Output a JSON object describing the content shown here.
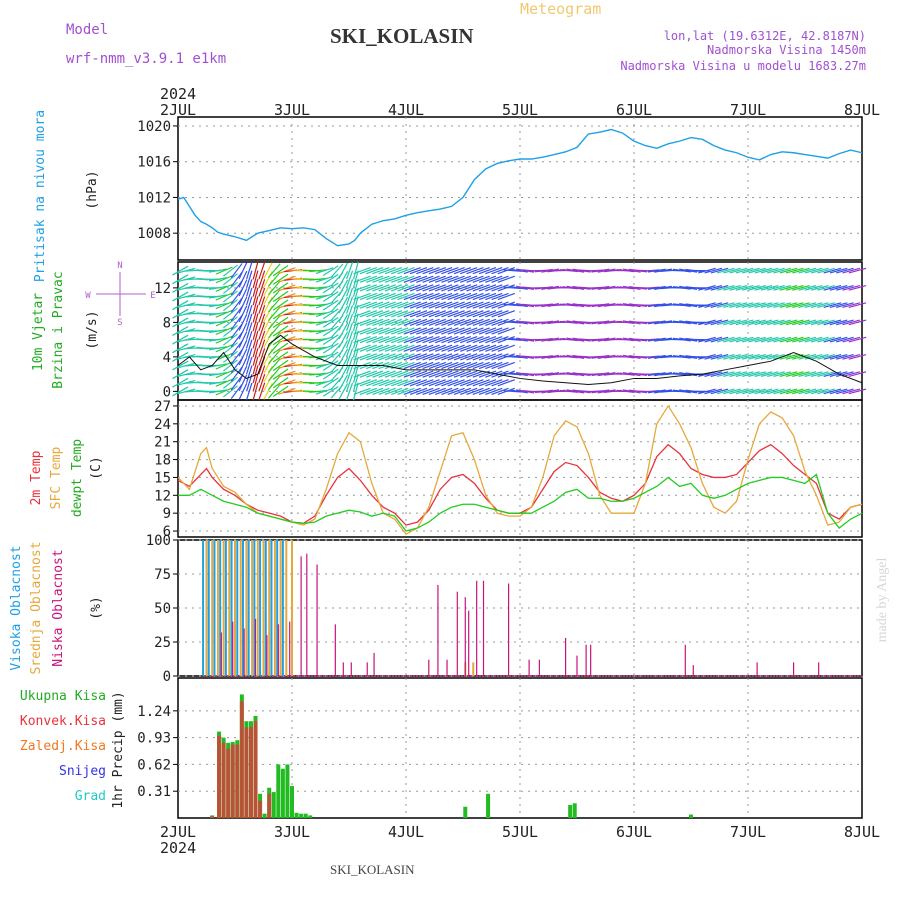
{
  "header": {
    "model_label": "Model",
    "model_name": "wrf-nmm_v3.9.1  e1km",
    "product": "Meteogram",
    "station": "SKI_KOLASIN",
    "lonlat": "lon,lat (19.6312E, 42.8187N)",
    "elevation": "Nadmorska Visina 1450m",
    "model_elevation": "Nadmorska Visina u modelu 1683.27m"
  },
  "footer": {
    "station": "SKI_KOLASIN",
    "watermark": "made by Angel"
  },
  "time_axis": {
    "year": "2024",
    "ticks": [
      "2JUL",
      "3JUL",
      "4JUL",
      "5JUL",
      "6JUL",
      "7JUL",
      "8JUL"
    ]
  },
  "panels": {
    "pressure": {
      "label": "Pritisak na nivou mora",
      "unit": "(hPa)"
    },
    "wind": {
      "label1": "10m Vjetar",
      "label2": "Brzina i Pravac",
      "unit": "(m/s)",
      "compass_n": "N",
      "compass_s": "S",
      "compass_w": "W",
      "compass_e": "E"
    },
    "temp": {
      "label1": "2m Temp",
      "label2": "SFC Temp",
      "label3": "dewpt Temp",
      "unit": "(C)"
    },
    "cloud": {
      "label1": "Visoka Oblacnost",
      "label2": "Srednja Oblacnost",
      "label3": "Niska Oblacnost",
      "unit": "(%)"
    },
    "precip": {
      "unit": "1hr Precip (mm)",
      "legend": [
        "Ukupna Kisa",
        "Konvek.Kisa",
        "Zaledj.Kisa",
        "Snijeg",
        "Grad"
      ]
    }
  },
  "colors": {
    "pressure": "#1ea0e6",
    "t2m": "#e8323c",
    "tsfc": "#e6a83c",
    "dewpt": "#22cc22",
    "cloud_high": "#1ea0e6",
    "cloud_mid": "#e6a83c",
    "cloud_low": "#c8147a",
    "rain_total": "#22bb22",
    "rain_conv": "#e8323c",
    "rain_frz": "#f07820",
    "snow": "#3232e6",
    "hail": "#22c8c8"
  },
  "chart_data": [
    {
      "type": "line",
      "name": "pressure",
      "ylim": [
        1005,
        1021
      ],
      "yticks": [
        1008,
        1012,
        1016,
        1020
      ],
      "x_unit": "days since 2JUL 00Z",
      "x": [
        0,
        0.05,
        0.1,
        0.15,
        0.2,
        0.25,
        0.3,
        0.35,
        0.4,
        0.5,
        0.6,
        0.7,
        0.8,
        0.9,
        1.0,
        1.1,
        1.2,
        1.3,
        1.4,
        1.5,
        1.55,
        1.6,
        1.7,
        1.8,
        1.9,
        2.0,
        2.1,
        2.2,
        2.3,
        2.4,
        2.5,
        2.6,
        2.7,
        2.8,
        2.9,
        3.0,
        3.1,
        3.2,
        3.3,
        3.4,
        3.5,
        3.6,
        3.7,
        3.8,
        3.9,
        4.0,
        4.1,
        4.2,
        4.3,
        4.4,
        4.5,
        4.6,
        4.7,
        4.8,
        4.9,
        5.0,
        5.1,
        5.2,
        5.3,
        5.4,
        5.5,
        5.6,
        5.7,
        5.8,
        5.9,
        6.0
      ],
      "series": [
        {
          "values": [
            1011.8,
            1012.0,
            1011.0,
            1010.0,
            1009.3,
            1009.0,
            1008.6,
            1008.1,
            1007.9,
            1007.6,
            1007.2,
            1008.0,
            1008.3,
            1008.6,
            1008.5,
            1008.6,
            1008.4,
            1007.4,
            1006.6,
            1006.8,
            1007.2,
            1008.0,
            1009.0,
            1009.4,
            1009.6,
            1010.0,
            1010.3,
            1010.5,
            1010.7,
            1011.0,
            1012.0,
            1014.0,
            1015.2,
            1015.8,
            1016.1,
            1016.3,
            1016.3,
            1016.5,
            1016.8,
            1017.1,
            1017.6,
            1019.1,
            1019.3,
            1019.6,
            1019.2,
            1018.3,
            1017.8,
            1017.5,
            1018.0,
            1018.3,
            1018.7,
            1018.5,
            1017.8,
            1017.3,
            1017.0,
            1016.5,
            1016.2,
            1016.8,
            1017.1,
            1017.0,
            1016.8,
            1016.6,
            1016.4,
            1016.9,
            1017.3,
            1017.0
          ]
        }
      ]
    },
    {
      "type": "line",
      "name": "wind_speed",
      "ylim": [
        -1,
        15
      ],
      "yticks": [
        0,
        4,
        8,
        12
      ],
      "x": [
        0,
        0.1,
        0.2,
        0.3,
        0.4,
        0.5,
        0.6,
        0.7,
        0.8,
        0.9,
        1.0,
        1.2,
        1.4,
        1.6,
        1.8,
        2.0,
        2.2,
        2.4,
        2.6,
        2.8,
        3.0,
        3.2,
        3.4,
        3.6,
        3.8,
        4.0,
        4.2,
        4.4,
        4.6,
        4.8,
        5.0,
        5.2,
        5.4,
        5.6,
        5.8,
        6.0
      ],
      "series": [
        {
          "values": [
            3,
            4,
            2.5,
            3,
            4.5,
            2.5,
            1.5,
            2,
            5.5,
            6.5,
            5.5,
            4,
            3,
            3,
            3,
            2.5,
            2.5,
            2.5,
            2.5,
            2,
            1.5,
            1.2,
            1,
            0.8,
            1,
            1.5,
            1.5,
            1.8,
            2,
            2.5,
            3,
            3.5,
            4.5,
            3.5,
            2,
            1
          ]
        }
      ],
      "barb_rows": [
        0,
        1,
        2,
        3,
        4,
        5,
        6,
        7,
        8,
        9,
        10,
        11,
        12,
        13,
        14
      ]
    },
    {
      "type": "line",
      "name": "temperature",
      "ylim": [
        5,
        28
      ],
      "yticks": [
        6,
        9,
        12,
        15,
        18,
        21,
        24,
        27
      ],
      "x": [
        0,
        0.1,
        0.2,
        0.25,
        0.3,
        0.4,
        0.5,
        0.6,
        0.7,
        0.8,
        0.9,
        1.0,
        1.1,
        1.2,
        1.3,
        1.4,
        1.5,
        1.6,
        1.7,
        1.8,
        1.9,
        2.0,
        2.1,
        2.2,
        2.3,
        2.4,
        2.5,
        2.6,
        2.7,
        2.8,
        2.9,
        3.0,
        3.1,
        3.2,
        3.3,
        3.4,
        3.5,
        3.6,
        3.7,
        3.8,
        3.9,
        4.0,
        4.1,
        4.2,
        4.3,
        4.4,
        4.5,
        4.6,
        4.7,
        4.8,
        4.9,
        5.0,
        5.1,
        5.2,
        5.3,
        5.4,
        5.5,
        5.6,
        5.7,
        5.8,
        5.9,
        6.0
      ],
      "series": [
        {
          "name": "2m Temp",
          "values": [
            14.5,
            13.5,
            15.5,
            16.5,
            15,
            13,
            12,
            10.5,
            9.5,
            9,
            8.5,
            7.5,
            7.3,
            8.5,
            12,
            15,
            16.5,
            14.5,
            12,
            10,
            9,
            7,
            7.5,
            9.5,
            13,
            15,
            15.5,
            14,
            11.5,
            9.5,
            9,
            9,
            10,
            13,
            16,
            17.5,
            17,
            15,
            12.5,
            11.5,
            11,
            12,
            14,
            18.5,
            20.5,
            19,
            16.5,
            15.5,
            15,
            15,
            15.5,
            17.5,
            19.5,
            20.5,
            19,
            17,
            15.5,
            14,
            9,
            8,
            10,
            10.5
          ]
        },
        {
          "name": "SFC Temp",
          "values": [
            15,
            13,
            19,
            20,
            16.5,
            13.5,
            12.5,
            10.5,
            9,
            8.5,
            8,
            7.5,
            7,
            8,
            13,
            19,
            22.5,
            21,
            14,
            9,
            8,
            5.5,
            6.5,
            10,
            16,
            22,
            22.5,
            18,
            12,
            9,
            8.5,
            8.5,
            10,
            15,
            22,
            24.5,
            23.5,
            19,
            12,
            9,
            9,
            9,
            14,
            24,
            27,
            24,
            20,
            14,
            10,
            9,
            11,
            18,
            24,
            26,
            25,
            22,
            16,
            12,
            7,
            7.5,
            10,
            10.5
          ]
        },
        {
          "name": "dewpt Temp",
          "values": [
            12,
            12,
            13,
            12.5,
            12,
            11,
            10.5,
            10,
            9,
            8.5,
            8,
            7.5,
            7.3,
            7.5,
            8.5,
            9,
            9.5,
            9.2,
            8.5,
            9,
            8.5,
            6,
            6.5,
            7.5,
            9,
            10,
            10.5,
            10.5,
            10,
            9.5,
            9,
            9,
            9,
            10,
            11,
            12.5,
            13,
            11.5,
            11.5,
            11,
            11,
            11.5,
            12.5,
            13.5,
            15,
            13.5,
            14,
            12,
            11.5,
            12,
            13,
            14,
            14.5,
            15,
            15,
            14.5,
            14,
            15.5,
            9,
            6.5,
            8,
            9
          ]
        }
      ]
    },
    {
      "type": "bar",
      "name": "cloud_cover",
      "ylim": [
        0,
        100
      ],
      "yticks": [
        0,
        25,
        50,
        75,
        100
      ],
      "series": [
        {
          "name": "Visoka Oblacnost",
          "x": [
            0.22,
            0.27,
            0.32,
            0.37,
            0.42,
            0.47,
            0.52,
            0.57,
            0.62,
            0.67,
            0.72,
            0.77,
            0.82,
            0.87,
            0.92
          ],
          "values": [
            100,
            100,
            100,
            100,
            100,
            100,
            100,
            100,
            100,
            100,
            100,
            100,
            100,
            100,
            100
          ]
        },
        {
          "name": "Srednja Oblacnost",
          "x": [
            0.25,
            0.3,
            0.35,
            0.4,
            0.45,
            0.5,
            0.55,
            0.6,
            0.65,
            0.7,
            0.75,
            0.8,
            0.85,
            0.9,
            0.95,
            1.0,
            2.52,
            2.59
          ],
          "values": [
            100,
            100,
            100,
            100,
            100,
            100,
            100,
            100,
            100,
            100,
            100,
            100,
            100,
            100,
            100,
            100,
            10,
            10
          ]
        },
        {
          "name": "Niska Oblacnost",
          "x": [
            0.38,
            0.48,
            0.58,
            0.68,
            0.78,
            0.88,
            0.98,
            1.08,
            1.13,
            1.22,
            1.38,
            1.45,
            1.52,
            1.66,
            1.72,
            2.2,
            2.28,
            2.36,
            2.45,
            2.52,
            2.55,
            2.62,
            2.68,
            2.9,
            3.08,
            3.17,
            3.4,
            3.5,
            3.58,
            3.62,
            4.45,
            4.52,
            5.08,
            5.4,
            5.62
          ],
          "values": [
            32,
            40,
            35,
            42,
            30,
            38,
            40,
            88,
            90,
            82,
            38,
            10,
            10,
            10,
            17,
            12,
            67,
            12,
            62,
            58,
            48,
            70,
            70,
            68,
            12,
            12,
            28,
            15,
            23,
            23,
            23,
            8,
            10,
            10,
            10
          ]
        }
      ]
    },
    {
      "type": "bar",
      "name": "precip_1hr",
      "ylim": [
        0,
        1.62
      ],
      "yticks": [
        0.31,
        0.62,
        0.93,
        1.24
      ],
      "series": [
        {
          "name": "Ukupna Kisa",
          "x": [
            0.3,
            0.36,
            0.4,
            0.44,
            0.48,
            0.52,
            0.56,
            0.6,
            0.64,
            0.68,
            0.72,
            0.76,
            0.8,
            0.84,
            0.88,
            0.92,
            0.96,
            1.0,
            1.04,
            1.08,
            1.12,
            1.16,
            2.52,
            2.72,
            3.44,
            3.48,
            4.5
          ],
          "values": [
            0.03,
            1.0,
            0.93,
            0.87,
            0.88,
            0.9,
            1.43,
            1.12,
            1.12,
            1.18,
            0.28,
            0.05,
            0.35,
            0.3,
            0.62,
            0.57,
            0.62,
            0.37,
            0.06,
            0.05,
            0.05,
            0.03,
            0.13,
            0.28,
            0.15,
            0.17,
            0.04
          ]
        },
        {
          "name": "Konvek.Kisa",
          "x": [
            0.3,
            0.36,
            0.4,
            0.44,
            0.48,
            0.52,
            0.56,
            0.6,
            0.64,
            0.68,
            0.72,
            0.8
          ],
          "values": [
            0.02,
            0.95,
            0.87,
            0.8,
            0.85,
            0.85,
            1.35,
            1.05,
            1.05,
            1.12,
            0.2,
            0.28
          ]
        }
      ]
    }
  ]
}
